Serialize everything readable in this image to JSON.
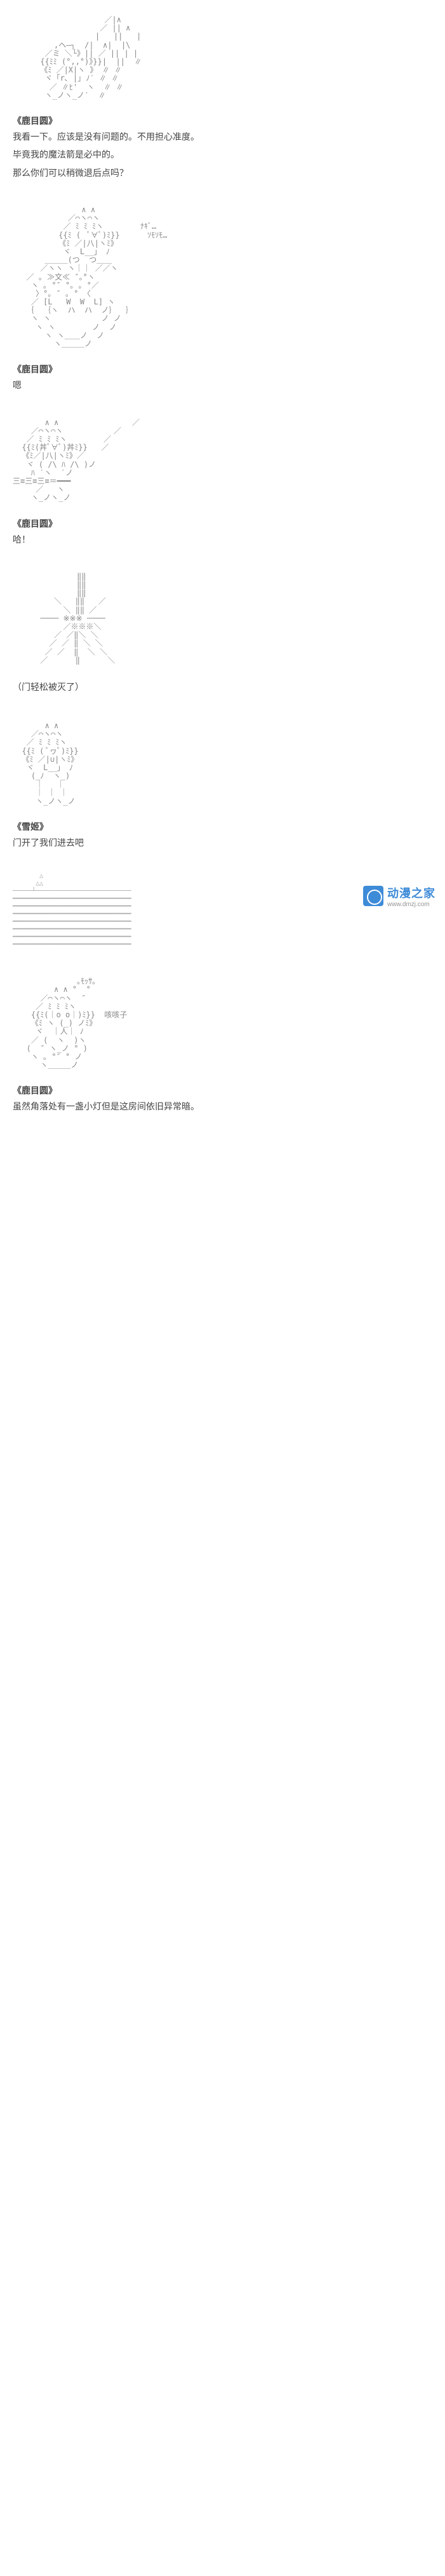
{
  "panels": [
    {
      "art": "                    ／|∧\n                   ／ || ∧\n                  |   ||   |\n         ,ヘ―┐  /|  ∧|  |\\\n       ／ミ ＼└》|| ／ || | |\n      {{ﾐﾐ (°,,°)》}}|  ||  ∥\n      《ﾐ ／|X|ヽ 》 ∥ ∥\n       ヾ「r､ |｣ ﾉ′ ∥ ∥\n        ／ ∥ﾋ'  ヽ  ∥ ∥\n       ヽ_ノヽ_ノ′  ∥",
      "speaker": "《鹿目圆》",
      "lines": [
        "我看一下。应该是没有问题的。不用担心准度。",
        "毕竟我的魔法箭是必中的。",
        "那么你们可以稍微退后点吗？"
      ]
    },
    {
      "art": "               ∧ ∧\n            ／⌒ヽ⌒ヽ\n           ／ ﾐ ﾐ ﾐヽ        ﾅｷﾞ…\n          {{ﾐ (  ﾟ∀ﾟ)ﾐ}}      ｿﾓｿﾓ…\n          《ﾐ ／|八|ヽﾐ》\n           ヾ  L__」 ﾉ\n       ＿＿＿(つ  つ＿＿\n      ／ヽヽ ヽ｜｜ ／／ヽ\n   ／ ｡ ≫文≪ ″｡°ヽ\n    ヽ ｡ °″ °｡ ｡ °／\n     〉°｡ ″ ｡ ° 〈\n    ／ [L   W  W  L] ヽ\n   ｛  ｛ヽ  ハ  ハ  ノ｝  ｝\n    ヽ ヽ           ノ ノ\n     ヽ ヽ        ノ  ノ\n       ヽ ヽ＿＿ノ  ノ\n         ヽ＿＿＿ノ",
      "speaker": "《鹿目圆》",
      "lines": [
        "嗯"
      ]
    },
    {
      "art": "       ∧ ∧                ／\n    ／⌒ヽ⌒ヽ           ／\n   ／ ﾐ ﾐ ﾐヽ        ／\n  {{ﾐ(丼ﾟ∀ﾟ)丼ﾐ}}   ／\n  《ﾐ／|八|ヽﾐ》／\n   ヾ ( /\\ ﾊ /\\ )ノ\n    ﾊ ′ヽ  ′ノ\n三≡三≡三≡＝━━━\n     ／   ヽ\n    ヽ_ノヽ_ノ",
      "speaker": "《鹿目圆》",
      "lines": [
        "哈！"
      ]
    },
    {
      "art": "              ‖‖\n              ‖‖\n              ‖‖\n         ＼   ‖‖   ／\n           ＼ ‖‖ ／\n      ──── ※※※ ────\n           ／※※※＼\n         ／ ／‖＼ ＼\n        ／ ／ ‖ ＼ ＼\n       ／ ／  ‖  ＼ ＼\n      ／      ‖      ＼",
      "speaker": null,
      "narration": "（门轻松被灭了）"
    },
    {
      "art": "       ∧ ∧\n    ／⌒ヽ⌒ヽ\n   ／ ﾐ ﾐ ﾐヽ\n  {{ﾐ ( ﾟヮﾟ)ﾐ}}\n  《ﾐ ／|∪|ヽﾐ》\n   ヾ  L__」 ﾉ\n    (_ﾉ  ヽ_)\n     ｜   ｜\n     ｜ ｜ ｜\n     ヽ_ノヽ_ノ",
      "speaker": "《雪姬》",
      "lines": [
        "门开了我们进去吧"
      ]
    },
    {
      "horizon": "       △\n      △△\n─────┴─────────────────────────\n━━━━━━━━━━━━━━━━━━━━━━━━━━━━━━━\n━━━━━━━━━━━━━━━━━━━━━━━━━━━━━━━\n━━━━━━━━━━━━━━━━━━━━━━━━━━━━━━━\n━━━━━━━━━━━━━━━━━━━━━━━━━━━━━━━\n━━━━━━━━━━━━━━━━━━━━━━━━━━━━━━━\n━━━━━━━━━━━━━━━━━━━━━━━━━━━━━━━\n━━━━━━━━━━━━━━━━━━━━━━━━━━━━━━━"
    },
    {
      "art": "              ｡ﾓｯｻ｡\n         ∧ ∧ °  °\n      ／⌒ヽ⌒ヽ  ″\n     ／ ﾐ ﾐ ﾐヽ\n    {{ﾐ(｜o o｜)ﾐ}}  咳咳子\n    《ﾐ ヽ (_) ノﾐ》\n     ヾ  ｜人｜ ﾉ\n    ／ (  ヽ  )ヽ\n   (  ″ ヽ_ノ ° )\n    ヽ ｡ °″ ° ノ\n      ヽ＿＿＿ノ",
      "speaker": "《鹿目圆》",
      "lines": [
        "虽然角落处有一盏小灯但是这房间依旧异常暗。"
      ]
    }
  ],
  "watermark": {
    "text": "动漫之家",
    "url": "www.dmzj.com"
  },
  "colors": {
    "background": "#ffffff",
    "text": "#444444",
    "ascii": "#888888",
    "brand": "#2a7fd4"
  }
}
